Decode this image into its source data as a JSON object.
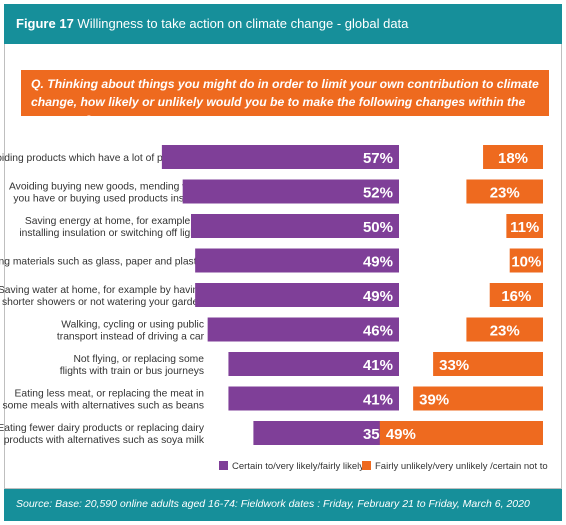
{
  "figure_label": "Figure 17",
  "figure_title": "Willingness to take action on climate change - global data",
  "question": "Q. Thinking about things you might do in order to limit your own contribution to climate change, how likely or unlikely would you be to make the following changes within the next year?",
  "source": "Source: Base: 20,590 online adults aged 16-74: Fieldwork dates : Friday, February 21 to Friday, March 6, 2020",
  "colors": {
    "teal": "#168f9a",
    "purple": "#7f3f98",
    "orange": "#ee6a1f"
  },
  "chart_data": {
    "type": "bar",
    "categories": [
      [
        "Avoiding products which have a lot of packaging"
      ],
      [
        "Avoiding buying new goods, mending what",
        "you have or buying used products instead"
      ],
      [
        "Saving energy at home, for example by",
        "installing insulation or switching off lights"
      ],
      [
        "Recycling materials such as glass, paper and plastic"
      ],
      [
        "Saving water at home, for example by having",
        "shorter showers or not watering your garden"
      ],
      [
        "Walking, cycling or using public",
        "transport instead of driving a car"
      ],
      [
        "Not flying, or replacing some",
        "flights with train or bus journeys"
      ],
      [
        "Eating less meat, or replacing the meat in",
        "some meals with alternatives such as beans"
      ],
      [
        "Eating fewer dairy products or replacing dairy",
        "products with alternatives such as soya milk"
      ]
    ],
    "series": [
      {
        "name": "Certain to/very likely/fairly likely",
        "values": [
          57,
          52,
          50,
          49,
          49,
          46,
          41,
          41,
          35
        ],
        "color": "#7f3f98"
      },
      {
        "name": "Fairly unlikely/very unlikely /certain not to",
        "values": [
          18,
          23,
          11,
          10,
          16,
          23,
          33,
          39,
          49
        ],
        "color": "#ee6a1f"
      }
    ],
    "value_suffix": "%",
    "legend_position": "bottom"
  }
}
